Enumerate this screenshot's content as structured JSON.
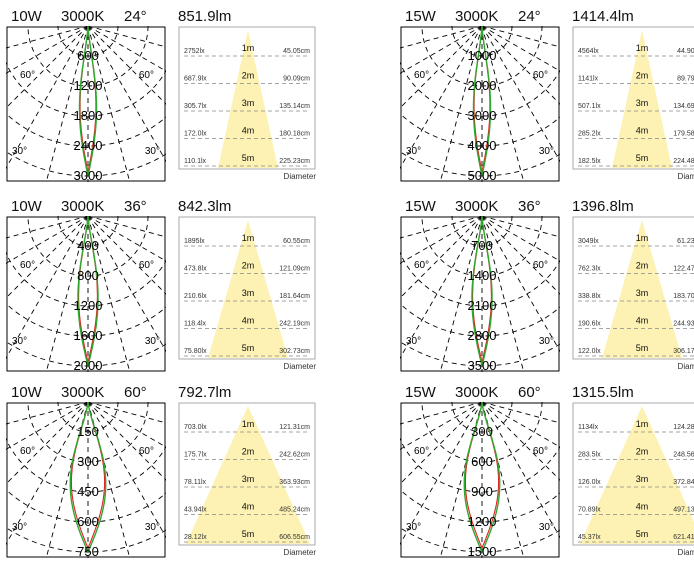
{
  "diameter_label": "Diameter",
  "angle_labels": [
    "60°",
    "60°",
    "30°",
    "30°"
  ],
  "colors": {
    "curve_green": "#2ea82e",
    "curve_red": "#e02020",
    "cone": "#fdf2b3",
    "grid": "#000000"
  },
  "panels": [
    {
      "power": "10W",
      "cct": "3000K",
      "angle": "24°",
      "lumen": "851.9lm",
      "rings": [
        "600",
        "1200",
        "1800",
        "2400",
        "3000"
      ],
      "rows": [
        {
          "m": "1m",
          "lux": "2752lx",
          "dia": "45.05cm"
        },
        {
          "m": "2m",
          "lux": "687.9lx",
          "dia": "90.09cm"
        },
        {
          "m": "3m",
          "lux": "305.7lx",
          "dia": "135.14cm"
        },
        {
          "m": "4m",
          "lux": "172.0lx",
          "dia": "180.18cm"
        },
        {
          "m": "5m",
          "lux": "110.1lx",
          "dia": "225.23cm"
        }
      ]
    },
    {
      "power": "15W",
      "cct": "3000K",
      "angle": "24°",
      "lumen": "1414.4lm",
      "rings": [
        "1000",
        "2000",
        "3000",
        "4000",
        "5000"
      ],
      "rows": [
        {
          "m": "1m",
          "lux": "4564lx",
          "dia": "44.90cm"
        },
        {
          "m": "2m",
          "lux": "1141lx",
          "dia": "89.79cm"
        },
        {
          "m": "3m",
          "lux": "507.1lx",
          "dia": "134.69cm"
        },
        {
          "m": "4m",
          "lux": "285.2lx",
          "dia": "179.58cm"
        },
        {
          "m": "5m",
          "lux": "182.5lx",
          "dia": "224.48cm"
        }
      ]
    },
    {
      "power": "10W",
      "cct": "3000K",
      "angle": "36°",
      "lumen": "842.3lm",
      "rings": [
        "400",
        "800",
        "1200",
        "1600",
        "2000"
      ],
      "rows": [
        {
          "m": "1m",
          "lux": "1895lx",
          "dia": "60.55cm"
        },
        {
          "m": "2m",
          "lux": "473.8lx",
          "dia": "121.09cm"
        },
        {
          "m": "3m",
          "lux": "210.6lx",
          "dia": "181.64cm"
        },
        {
          "m": "4m",
          "lux": "118.4lx",
          "dia": "242.19cm"
        },
        {
          "m": "5m",
          "lux": "75.80lx",
          "dia": "302.73cm"
        }
      ]
    },
    {
      "power": "15W",
      "cct": "3000K",
      "angle": "36°",
      "lumen": "1396.8lm",
      "rings": [
        "700",
        "1400",
        "2100",
        "2800",
        "3500"
      ],
      "rows": [
        {
          "m": "1m",
          "lux": "3049lx",
          "dia": "61.23cm"
        },
        {
          "m": "2m",
          "lux": "762.3lx",
          "dia": "122.47cm"
        },
        {
          "m": "3m",
          "lux": "338.8lx",
          "dia": "183.70cm"
        },
        {
          "m": "4m",
          "lux": "190.6lx",
          "dia": "244.93cm"
        },
        {
          "m": "5m",
          "lux": "122.0lx",
          "dia": "306.17cm"
        }
      ]
    },
    {
      "power": "10W",
      "cct": "3000K",
      "angle": "60°",
      "lumen": "792.7lm",
      "rings": [
        "150",
        "300",
        "450",
        "600",
        "750"
      ],
      "rows": [
        {
          "m": "1m",
          "lux": "703.0lx",
          "dia": "121.31cm"
        },
        {
          "m": "2m",
          "lux": "175.7lx",
          "dia": "242.62cm"
        },
        {
          "m": "3m",
          "lux": "78.11lx",
          "dia": "363.93cm"
        },
        {
          "m": "4m",
          "lux": "43.94lx",
          "dia": "485.24cm"
        },
        {
          "m": "5m",
          "lux": "28.12lx",
          "dia": "606.55cm"
        }
      ]
    },
    {
      "power": "15W",
      "cct": "3000K",
      "angle": "60°",
      "lumen": "1315.5lm",
      "rings": [
        "300",
        "600",
        "900",
        "1200",
        "1500"
      ],
      "rows": [
        {
          "m": "1m",
          "lux": "1134lx",
          "dia": "124.28cm"
        },
        {
          "m": "2m",
          "lux": "283.5lx",
          "dia": "248.56cm"
        },
        {
          "m": "3m",
          "lux": "126.0lx",
          "dia": "372.84cm"
        },
        {
          "m": "4m",
          "lux": "70.89lx",
          "dia": "497.13cm"
        },
        {
          "m": "5m",
          "lux": "45.37lx",
          "dia": "621.41cm"
        }
      ]
    }
  ],
  "chart_data": [
    {
      "type": "polar",
      "beam_angle_deg": 24,
      "peak_intensity_max_ring": 3000,
      "rings": [
        600,
        1200,
        1800,
        2400,
        3000
      ]
    },
    {
      "type": "polar",
      "beam_angle_deg": 24,
      "peak_intensity_max_ring": 5000,
      "rings": [
        1000,
        2000,
        3000,
        4000,
        5000
      ]
    },
    {
      "type": "polar",
      "beam_angle_deg": 36,
      "peak_intensity_max_ring": 2000,
      "rings": [
        400,
        800,
        1200,
        1600,
        2000
      ]
    },
    {
      "type": "polar",
      "beam_angle_deg": 36,
      "peak_intensity_max_ring": 3500,
      "rings": [
        700,
        1400,
        2100,
        2800,
        3500
      ]
    },
    {
      "type": "polar",
      "beam_angle_deg": 60,
      "peak_intensity_max_ring": 750,
      "rings": [
        150,
        300,
        450,
        600,
        750
      ]
    },
    {
      "type": "polar",
      "beam_angle_deg": 60,
      "peak_intensity_max_ring": 1500,
      "rings": [
        300,
        600,
        900,
        1200,
        1500
      ]
    }
  ]
}
